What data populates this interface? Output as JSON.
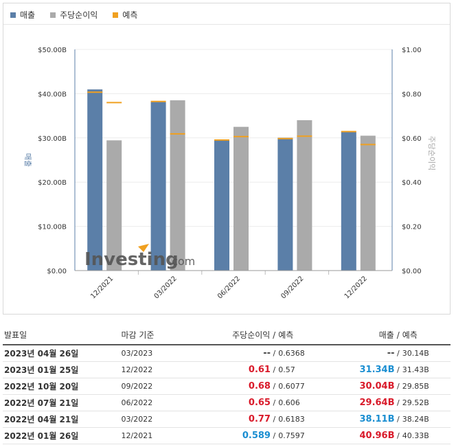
{
  "legend": [
    {
      "label": "매출",
      "color": "#5b7fa8"
    },
    {
      "label": "주당순이익",
      "color": "#aaaaaa"
    },
    {
      "label": "예측",
      "color": "#f0a020"
    }
  ],
  "chart_data": {
    "type": "bar",
    "categories": [
      "12/2021",
      "03/2022",
      "06/2022",
      "09/2022",
      "12/2022"
    ],
    "series": [
      {
        "name": "매출",
        "axis": "left",
        "color": "#5b7fa8",
        "values": [
          40.96,
          38.11,
          29.64,
          30.04,
          31.34
        ]
      },
      {
        "name": "주당순이익",
        "axis": "right",
        "color": "#aaaaaa",
        "values": [
          0.589,
          0.77,
          0.65,
          0.68,
          0.61
        ]
      },
      {
        "name": "예측",
        "role": "revenue-forecast",
        "color": "#f0a020",
        "values": [
          40.33,
          38.24,
          29.52,
          29.85,
          31.43
        ]
      },
      {
        "name": "예측",
        "role": "eps-forecast",
        "color": "#f0a020",
        "values": [
          0.7597,
          0.6183,
          0.606,
          0.6077,
          0.57
        ]
      }
    ],
    "y_left": {
      "label": "매출",
      "ylim": [
        0,
        50
      ],
      "ticks": [
        "$0.00",
        "$10.00B",
        "$20.00B",
        "$30.00B",
        "$40.00B",
        "$50.00B"
      ]
    },
    "y_right": {
      "label": "주당순이익",
      "ylim": [
        0,
        1.0
      ],
      "ticks": [
        "$0.00",
        "$0.20",
        "$0.40",
        "$0.60",
        "$0.80",
        "$1.00"
      ]
    },
    "grid": true,
    "legend_position": "top-left",
    "watermark": "Investing.com"
  },
  "table": {
    "headers": [
      "발표일",
      "마감 기준",
      "주당순이익",
      "/",
      "예측",
      "매출",
      "/",
      "예측"
    ],
    "rows": [
      {
        "date": "2023년 04월 26일",
        "period": "03/2023",
        "eps": "--",
        "eps_color": "dim",
        "eps_fc": "0.6368",
        "rev": "--",
        "rev_color": "dim",
        "rev_fc": "30.14B"
      },
      {
        "date": "2023년 01월 25일",
        "period": "12/2022",
        "eps": "0.61",
        "eps_color": "red",
        "eps_fc": "0.57",
        "rev": "31.34B",
        "rev_color": "blue",
        "rev_fc": "31.43B"
      },
      {
        "date": "2022년 10월 20일",
        "period": "09/2022",
        "eps": "0.68",
        "eps_color": "red",
        "eps_fc": "0.6077",
        "rev": "30.04B",
        "rev_color": "red",
        "rev_fc": "29.85B"
      },
      {
        "date": "2022년 07월 21일",
        "period": "06/2022",
        "eps": "0.65",
        "eps_color": "red",
        "eps_fc": "0.606",
        "rev": "29.64B",
        "rev_color": "red",
        "rev_fc": "29.52B"
      },
      {
        "date": "2022년 04월 21일",
        "period": "03/2022",
        "eps": "0.77",
        "eps_color": "red",
        "eps_fc": "0.6183",
        "rev": "38.11B",
        "rev_color": "blue",
        "rev_fc": "38.24B"
      },
      {
        "date": "2022년 01월 26일",
        "period": "12/2021",
        "eps": "0.589",
        "eps_color": "blue",
        "eps_fc": "0.7597",
        "rev": "40.96B",
        "rev_color": "red",
        "rev_fc": "40.33B"
      }
    ]
  }
}
